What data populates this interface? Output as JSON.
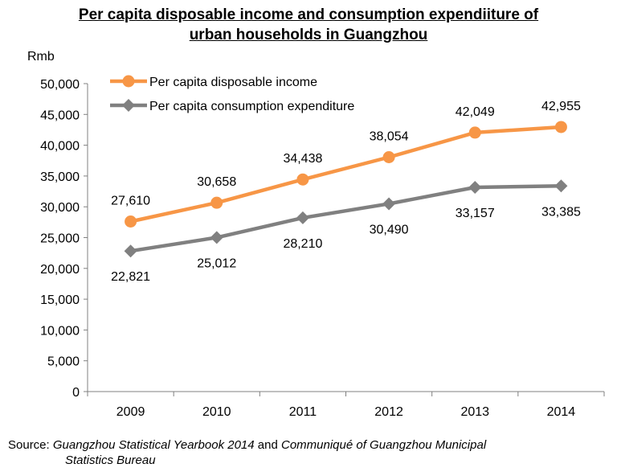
{
  "title_line1": "Per capita disposable income and consumption expendiiture of",
  "title_line2": "urban households in Guangzhou",
  "source": {
    "prefix": "Source: ",
    "ref1": "Guangzhou Statistical Yearbook 2014",
    "mid": " and ",
    "ref2_line1": "Communiqué of Guangzhou Municipal",
    "ref2_line2": "Statistics Bureau"
  },
  "chart_data": {
    "type": "line",
    "ylabel": "Rmb",
    "categories": [
      "2009",
      "2010",
      "2011",
      "2012",
      "2013",
      "2014"
    ],
    "ylim": [
      0,
      50000
    ],
    "yticks": [
      "0",
      "5,000",
      "10,000",
      "15,000",
      "20,000",
      "25,000",
      "30,000",
      "35,000",
      "40,000",
      "45,000",
      "50,000"
    ],
    "ytick_values": [
      0,
      5000,
      10000,
      15000,
      20000,
      25000,
      30000,
      35000,
      40000,
      45000,
      50000
    ],
    "grid": false,
    "legend": "top-left",
    "series": [
      {
        "name": "Per capita disposable income",
        "values": [
          27610,
          30658,
          34438,
          38054,
          42049,
          42955
        ],
        "labels": [
          "27,610",
          "30,658",
          "34,438",
          "38,054",
          "42,049",
          "42,955"
        ],
        "color": "#F79646",
        "marker": "circle",
        "label_position": "above"
      },
      {
        "name": "Per capita consumption expenditure",
        "values": [
          22821,
          25012,
          28210,
          30490,
          33157,
          33385
        ],
        "labels": [
          "22,821",
          "25,012",
          "28,210",
          "30,490",
          "33,157",
          "33,385"
        ],
        "color": "#808080",
        "marker": "diamond",
        "label_position": "below"
      }
    ]
  }
}
